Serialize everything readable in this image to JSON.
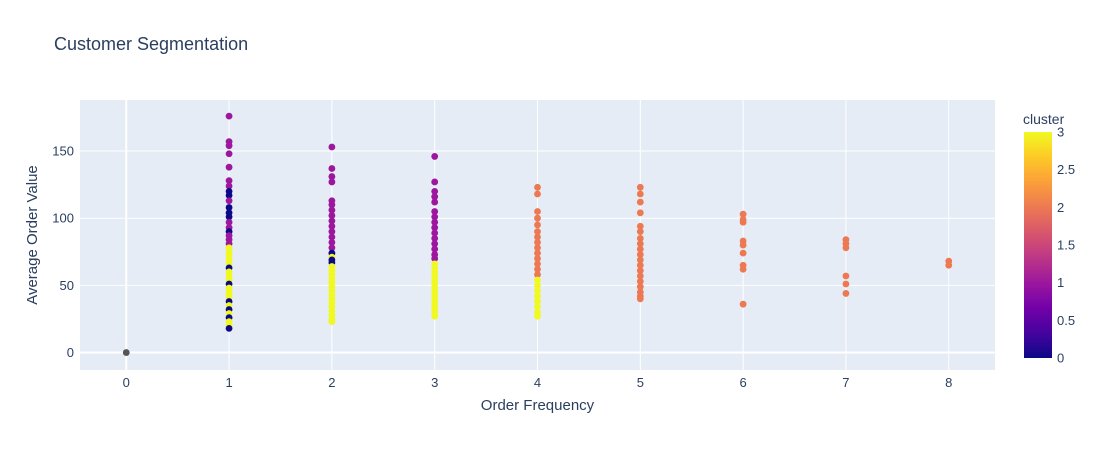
{
  "chart_data": {
    "type": "scatter",
    "title": "Customer Segmentation",
    "xlabel": "Order Frequency",
    "ylabel": "Average Order Value",
    "xlim": [
      -0.45,
      8.45
    ],
    "ylim": [
      -13,
      188
    ],
    "x_ticks": [
      0,
      1,
      2,
      3,
      4,
      5,
      6,
      7,
      8
    ],
    "y_ticks": [
      0,
      50,
      100,
      150
    ],
    "grid": true,
    "colorbar": {
      "title": "cluster",
      "range": [
        0,
        3
      ],
      "ticks": [
        "0",
        "0.5",
        "1",
        "1.5",
        "2",
        "2.5",
        "3"
      ],
      "colorscale": [
        "#0d0887",
        "#46039f",
        "#7201a8",
        "#9c179e",
        "#bd3786",
        "#d8576b",
        "#ed7953",
        "#fb9f3a",
        "#fdca26",
        "#f0f921"
      ]
    },
    "clusters": [
      {
        "cluster": 0,
        "color": "#0d0887"
      },
      {
        "cluster": 1,
        "color": "#9c179e"
      },
      {
        "cluster": 2,
        "color": "#ed7953"
      },
      {
        "cluster": 3,
        "color": "#f0f921"
      }
    ],
    "points": [
      {
        "x": 0,
        "y": 0,
        "c": -1
      },
      {
        "x": 1,
        "y": 176,
        "c": 1
      },
      {
        "x": 1,
        "y": 157,
        "c": 1
      },
      {
        "x": 1,
        "y": 154,
        "c": 1
      },
      {
        "x": 1,
        "y": 148,
        "c": 1
      },
      {
        "x": 1,
        "y": 138,
        "c": 1
      },
      {
        "x": 1,
        "y": 128,
        "c": 1
      },
      {
        "x": 1,
        "y": 124,
        "c": 1
      },
      {
        "x": 1,
        "y": 120,
        "c": 0
      },
      {
        "x": 1,
        "y": 117,
        "c": 0
      },
      {
        "x": 1,
        "y": 113,
        "c": 1
      },
      {
        "x": 1,
        "y": 108,
        "c": 0
      },
      {
        "x": 1,
        "y": 104,
        "c": 0
      },
      {
        "x": 1,
        "y": 101,
        "c": 0
      },
      {
        "x": 1,
        "y": 97,
        "c": 1
      },
      {
        "x": 1,
        "y": 93,
        "c": 1
      },
      {
        "x": 1,
        "y": 90,
        "c": 0
      },
      {
        "x": 1,
        "y": 87,
        "c": 1
      },
      {
        "x": 1,
        "y": 84,
        "c": 1
      },
      {
        "x": 1,
        "y": 81,
        "c": 1
      },
      {
        "x": 1,
        "y": 78,
        "c": 3
      },
      {
        "x": 1,
        "y": 75,
        "c": 3
      },
      {
        "x": 1,
        "y": 72,
        "c": 3
      },
      {
        "x": 1,
        "y": 69,
        "c": 3
      },
      {
        "x": 1,
        "y": 66,
        "c": 3
      },
      {
        "x": 1,
        "y": 63,
        "c": 0
      },
      {
        "x": 1,
        "y": 60,
        "c": 3
      },
      {
        "x": 1,
        "y": 57,
        "c": 3
      },
      {
        "x": 1,
        "y": 54,
        "c": 3
      },
      {
        "x": 1,
        "y": 51,
        "c": 0
      },
      {
        "x": 1,
        "y": 48,
        "c": 3
      },
      {
        "x": 1,
        "y": 45,
        "c": 3
      },
      {
        "x": 1,
        "y": 43,
        "c": 3
      },
      {
        "x": 1,
        "y": 41,
        "c": 3
      },
      {
        "x": 1,
        "y": 38,
        "c": 0
      },
      {
        "x": 1,
        "y": 35,
        "c": 3
      },
      {
        "x": 1,
        "y": 32,
        "c": 0
      },
      {
        "x": 1,
        "y": 29,
        "c": 3
      },
      {
        "x": 1,
        "y": 26,
        "c": 0
      },
      {
        "x": 1,
        "y": 23,
        "c": 3
      },
      {
        "x": 1,
        "y": 20,
        "c": 3
      },
      {
        "x": 1,
        "y": 18,
        "c": 0
      },
      {
        "x": 2,
        "y": 153,
        "c": 1
      },
      {
        "x": 2,
        "y": 137,
        "c": 1
      },
      {
        "x": 2,
        "y": 131,
        "c": 1
      },
      {
        "x": 2,
        "y": 127,
        "c": 1
      },
      {
        "x": 2,
        "y": 113,
        "c": 1
      },
      {
        "x": 2,
        "y": 110,
        "c": 1
      },
      {
        "x": 2,
        "y": 106,
        "c": 1
      },
      {
        "x": 2,
        "y": 102,
        "c": 1
      },
      {
        "x": 2,
        "y": 98,
        "c": 1
      },
      {
        "x": 2,
        "y": 94,
        "c": 1
      },
      {
        "x": 2,
        "y": 90,
        "c": 1
      },
      {
        "x": 2,
        "y": 86,
        "c": 1
      },
      {
        "x": 2,
        "y": 82,
        "c": 1
      },
      {
        "x": 2,
        "y": 78,
        "c": 1
      },
      {
        "x": 2,
        "y": 74,
        "c": 0
      },
      {
        "x": 2,
        "y": 71,
        "c": 3
      },
      {
        "x": 2,
        "y": 69,
        "c": 0
      },
      {
        "x": 2,
        "y": 67,
        "c": 0
      },
      {
        "x": 2,
        "y": 64,
        "c": 3
      },
      {
        "x": 2,
        "y": 61,
        "c": 3
      },
      {
        "x": 2,
        "y": 58,
        "c": 3
      },
      {
        "x": 2,
        "y": 55,
        "c": 3
      },
      {
        "x": 2,
        "y": 52,
        "c": 3
      },
      {
        "x": 2,
        "y": 49,
        "c": 3
      },
      {
        "x": 2,
        "y": 46,
        "c": 3
      },
      {
        "x": 2,
        "y": 43,
        "c": 3
      },
      {
        "x": 2,
        "y": 40,
        "c": 3
      },
      {
        "x": 2,
        "y": 37,
        "c": 3
      },
      {
        "x": 2,
        "y": 34,
        "c": 3
      },
      {
        "x": 2,
        "y": 31,
        "c": 3
      },
      {
        "x": 2,
        "y": 28,
        "c": 3
      },
      {
        "x": 2,
        "y": 25,
        "c": 3
      },
      {
        "x": 2,
        "y": 23,
        "c": 3
      },
      {
        "x": 3,
        "y": 146,
        "c": 1
      },
      {
        "x": 3,
        "y": 127,
        "c": 1
      },
      {
        "x": 3,
        "y": 120,
        "c": 1
      },
      {
        "x": 3,
        "y": 116,
        "c": 1
      },
      {
        "x": 3,
        "y": 112,
        "c": 1
      },
      {
        "x": 3,
        "y": 105,
        "c": 1
      },
      {
        "x": 3,
        "y": 101,
        "c": 1
      },
      {
        "x": 3,
        "y": 97,
        "c": 1
      },
      {
        "x": 3,
        "y": 93,
        "c": 1
      },
      {
        "x": 3,
        "y": 89,
        "c": 1
      },
      {
        "x": 3,
        "y": 85,
        "c": 1
      },
      {
        "x": 3,
        "y": 81,
        "c": 1
      },
      {
        "x": 3,
        "y": 77,
        "c": 1
      },
      {
        "x": 3,
        "y": 73,
        "c": 1
      },
      {
        "x": 3,
        "y": 70,
        "c": 1
      },
      {
        "x": 3,
        "y": 66,
        "c": 3
      },
      {
        "x": 3,
        "y": 63,
        "c": 3
      },
      {
        "x": 3,
        "y": 60,
        "c": 3
      },
      {
        "x": 3,
        "y": 57,
        "c": 3
      },
      {
        "x": 3,
        "y": 54,
        "c": 3
      },
      {
        "x": 3,
        "y": 51,
        "c": 3
      },
      {
        "x": 3,
        "y": 48,
        "c": 3
      },
      {
        "x": 3,
        "y": 45,
        "c": 3
      },
      {
        "x": 3,
        "y": 42,
        "c": 3
      },
      {
        "x": 3,
        "y": 39,
        "c": 3
      },
      {
        "x": 3,
        "y": 36,
        "c": 3
      },
      {
        "x": 3,
        "y": 33,
        "c": 3
      },
      {
        "x": 3,
        "y": 30,
        "c": 3
      },
      {
        "x": 3,
        "y": 27,
        "c": 3
      },
      {
        "x": 4,
        "y": 123,
        "c": 2
      },
      {
        "x": 4,
        "y": 118,
        "c": 2
      },
      {
        "x": 4,
        "y": 105,
        "c": 2
      },
      {
        "x": 4,
        "y": 100,
        "c": 2
      },
      {
        "x": 4,
        "y": 95,
        "c": 2
      },
      {
        "x": 4,
        "y": 90,
        "c": 2
      },
      {
        "x": 4,
        "y": 86,
        "c": 2
      },
      {
        "x": 4,
        "y": 82,
        "c": 2
      },
      {
        "x": 4,
        "y": 78,
        "c": 2
      },
      {
        "x": 4,
        "y": 74,
        "c": 2
      },
      {
        "x": 4,
        "y": 70,
        "c": 2
      },
      {
        "x": 4,
        "y": 66,
        "c": 2
      },
      {
        "x": 4,
        "y": 62,
        "c": 2
      },
      {
        "x": 4,
        "y": 58,
        "c": 2
      },
      {
        "x": 4,
        "y": 54,
        "c": 3
      },
      {
        "x": 4,
        "y": 50,
        "c": 3
      },
      {
        "x": 4,
        "y": 46,
        "c": 3
      },
      {
        "x": 4,
        "y": 42,
        "c": 3
      },
      {
        "x": 4,
        "y": 38,
        "c": 3
      },
      {
        "x": 4,
        "y": 34,
        "c": 3
      },
      {
        "x": 4,
        "y": 30,
        "c": 3
      },
      {
        "x": 4,
        "y": 27,
        "c": 3
      },
      {
        "x": 5,
        "y": 123,
        "c": 2
      },
      {
        "x": 5,
        "y": 118,
        "c": 2
      },
      {
        "x": 5,
        "y": 112,
        "c": 2
      },
      {
        "x": 5,
        "y": 104,
        "c": 2
      },
      {
        "x": 5,
        "y": 94,
        "c": 2
      },
      {
        "x": 5,
        "y": 90,
        "c": 2
      },
      {
        "x": 5,
        "y": 85,
        "c": 2
      },
      {
        "x": 5,
        "y": 81,
        "c": 2
      },
      {
        "x": 5,
        "y": 77,
        "c": 2
      },
      {
        "x": 5,
        "y": 73,
        "c": 2
      },
      {
        "x": 5,
        "y": 69,
        "c": 2
      },
      {
        "x": 5,
        "y": 65,
        "c": 2
      },
      {
        "x": 5,
        "y": 61,
        "c": 2
      },
      {
        "x": 5,
        "y": 57,
        "c": 2
      },
      {
        "x": 5,
        "y": 53,
        "c": 2
      },
      {
        "x": 5,
        "y": 49,
        "c": 2
      },
      {
        "x": 5,
        "y": 45,
        "c": 2
      },
      {
        "x": 5,
        "y": 42,
        "c": 2
      },
      {
        "x": 5,
        "y": 40,
        "c": 2
      },
      {
        "x": 6,
        "y": 103,
        "c": 2
      },
      {
        "x": 6,
        "y": 99,
        "c": 2
      },
      {
        "x": 6,
        "y": 97,
        "c": 2
      },
      {
        "x": 6,
        "y": 83,
        "c": 2
      },
      {
        "x": 6,
        "y": 80,
        "c": 2
      },
      {
        "x": 6,
        "y": 74,
        "c": 2
      },
      {
        "x": 6,
        "y": 65,
        "c": 2
      },
      {
        "x": 6,
        "y": 62,
        "c": 2
      },
      {
        "x": 6,
        "y": 36,
        "c": 2
      },
      {
        "x": 7,
        "y": 84,
        "c": 2
      },
      {
        "x": 7,
        "y": 81,
        "c": 2
      },
      {
        "x": 7,
        "y": 78,
        "c": 2
      },
      {
        "x": 7,
        "y": 57,
        "c": 2
      },
      {
        "x": 7,
        "y": 51,
        "c": 2
      },
      {
        "x": 7,
        "y": 44,
        "c": 2
      },
      {
        "x": 8,
        "y": 68,
        "c": 2
      },
      {
        "x": 8,
        "y": 65,
        "c": 2
      }
    ]
  }
}
